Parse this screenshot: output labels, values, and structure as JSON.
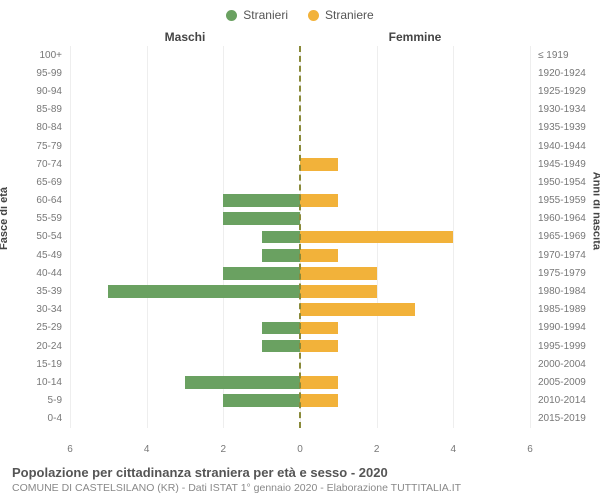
{
  "legend": {
    "male": {
      "label": "Stranieri",
      "color": "#6aa161"
    },
    "female": {
      "label": "Straniere",
      "color": "#f2b23a"
    }
  },
  "columns": {
    "male": "Maschi",
    "female": "Femmine"
  },
  "axis": {
    "left_title": "Fasce di età",
    "right_title": "Anni di nascita",
    "xmax": 6,
    "xticks": [
      6,
      4,
      2,
      0,
      2,
      4,
      6
    ]
  },
  "styling": {
    "bg": "#ffffff",
    "grid_color": "#eeeeee",
    "center_dash_color": "#8a8a3a",
    "tick_font_size": 10,
    "label_color": "#777777"
  },
  "rows": [
    {
      "age": "100+",
      "years": "≤ 1919",
      "m": 0,
      "f": 0
    },
    {
      "age": "95-99",
      "years": "1920-1924",
      "m": 0,
      "f": 0
    },
    {
      "age": "90-94",
      "years": "1925-1929",
      "m": 0,
      "f": 0
    },
    {
      "age": "85-89",
      "years": "1930-1934",
      "m": 0,
      "f": 0
    },
    {
      "age": "80-84",
      "years": "1935-1939",
      "m": 0,
      "f": 0
    },
    {
      "age": "75-79",
      "years": "1940-1944",
      "m": 0,
      "f": 0
    },
    {
      "age": "70-74",
      "years": "1945-1949",
      "m": 0,
      "f": 1
    },
    {
      "age": "65-69",
      "years": "1950-1954",
      "m": 0,
      "f": 0
    },
    {
      "age": "60-64",
      "years": "1955-1959",
      "m": 2,
      "f": 1
    },
    {
      "age": "55-59",
      "years": "1960-1964",
      "m": 2,
      "f": 0
    },
    {
      "age": "50-54",
      "years": "1965-1969",
      "m": 1,
      "f": 4
    },
    {
      "age": "45-49",
      "years": "1970-1974",
      "m": 1,
      "f": 1
    },
    {
      "age": "40-44",
      "years": "1975-1979",
      "m": 2,
      "f": 2
    },
    {
      "age": "35-39",
      "years": "1980-1984",
      "m": 5,
      "f": 2
    },
    {
      "age": "30-34",
      "years": "1985-1989",
      "m": 0,
      "f": 3
    },
    {
      "age": "25-29",
      "years": "1990-1994",
      "m": 1,
      "f": 1
    },
    {
      "age": "20-24",
      "years": "1995-1999",
      "m": 1,
      "f": 1
    },
    {
      "age": "15-19",
      "years": "2000-2004",
      "m": 0,
      "f": 0
    },
    {
      "age": "10-14",
      "years": "2005-2009",
      "m": 3,
      "f": 1
    },
    {
      "age": "5-9",
      "years": "2010-2014",
      "m": 2,
      "f": 1
    },
    {
      "age": "0-4",
      "years": "2015-2019",
      "m": 0,
      "f": 0
    }
  ],
  "footer": {
    "title": "Popolazione per cittadinanza straniera per età e sesso - 2020",
    "sub": "COMUNE DI CASTELSILANO (KR) - Dati ISTAT 1° gennaio 2020 - Elaborazione TUTTITALIA.IT"
  }
}
